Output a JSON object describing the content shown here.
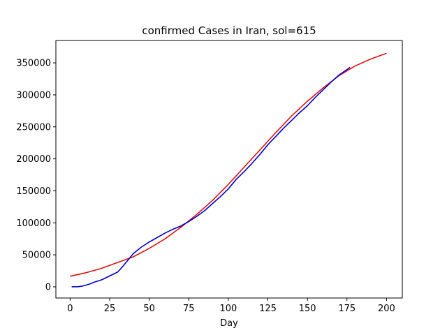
{
  "chart_data": {
    "type": "line",
    "title": "confirmed Cases in Iran, sol=615",
    "xlabel": "Day",
    "ylabel": "",
    "xlim": [
      -9,
      210
    ],
    "ylim": [
      -17500,
      385000
    ],
    "xticks": [
      0,
      25,
      50,
      75,
      100,
      125,
      150,
      175,
      200
    ],
    "yticks": [
      0,
      50000,
      100000,
      150000,
      200000,
      250000,
      300000,
      350000
    ],
    "grid": false,
    "series": [
      {
        "color": "#e01010",
        "x": [
          0,
          10,
          20,
          30,
          40,
          50,
          60,
          70,
          80,
          90,
          100,
          110,
          120,
          130,
          140,
          150,
          160,
          170,
          180,
          190,
          200
        ],
        "y": [
          16500,
          22000,
          29000,
          38000,
          47000,
          60000,
          75000,
          93000,
          113000,
          135000,
          160000,
          187000,
          214000,
          241000,
          267000,
          290000,
          311000,
          330000,
          345000,
          356000,
          365000
        ]
      },
      {
        "color": "#0000cc",
        "x": [
          1,
          5,
          8,
          12,
          15,
          20,
          25,
          30,
          33,
          36,
          40,
          45,
          50,
          55,
          60,
          65,
          70,
          75,
          80,
          85,
          90,
          95,
          100,
          105,
          110,
          115,
          120,
          125,
          130,
          135,
          140,
          145,
          150,
          155,
          160,
          165,
          170,
          177
        ],
        "y": [
          0,
          200,
          1200,
          4000,
          7000,
          11000,
          17000,
          23000,
          31000,
          40000,
          52000,
          62000,
          70000,
          77000,
          84000,
          90000,
          95000,
          102000,
          110000,
          119000,
          130000,
          141000,
          153000,
          168000,
          180000,
          193000,
          207000,
          222000,
          235000,
          248000,
          260000,
          272000,
          283000,
          296000,
          308000,
          320000,
          331000,
          343000
        ]
      }
    ]
  },
  "labels": {
    "xticks": [
      "0",
      "25",
      "50",
      "75",
      "100",
      "125",
      "150",
      "175",
      "200"
    ],
    "yticks": [
      "0",
      "50000",
      "100000",
      "150000",
      "200000",
      "250000",
      "300000",
      "350000"
    ]
  }
}
